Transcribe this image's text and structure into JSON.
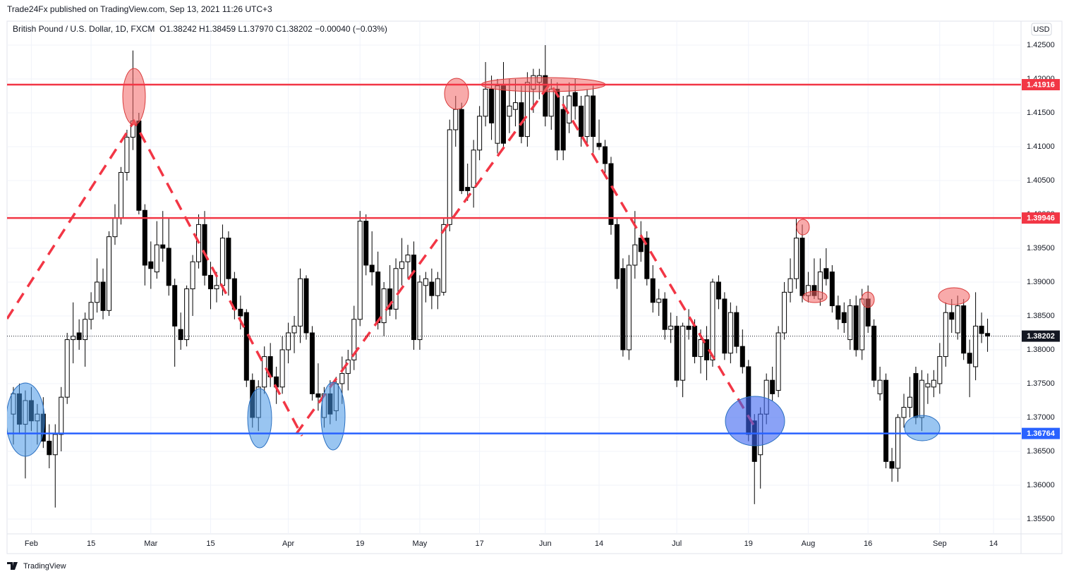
{
  "header": {
    "publisher": "Trade24Fx published on TradingView.com, Sep 13, 2021 11:26 UTC+3",
    "logo": "TradingView"
  },
  "chart_data": {
    "type": "candlestick",
    "title": "British Pound / U.S. Dollar, 1D, FXCM",
    "ohlc_legend": "O1.38242 H1.38459 L1.37970 C1.38202 −0.00040 (−0.03%)",
    "currency": "USD",
    "up_color": "#ffffff",
    "down_color": "#000000",
    "grid": true,
    "ylim": [
      1.35281,
      1.42854
    ],
    "xlim": [
      -1.06,
      168.6
    ],
    "yticks": [
      {
        "value": 1.355,
        "label": "1.35500"
      },
      {
        "value": 1.36,
        "label": "1.36000"
      },
      {
        "value": 1.365,
        "label": "1.36500"
      },
      {
        "value": 1.37,
        "label": "1.37000"
      },
      {
        "value": 1.375,
        "label": "1.37500"
      },
      {
        "value": 1.38,
        "label": "1.38000"
      },
      {
        "value": 1.385,
        "label": "1.38500"
      },
      {
        "value": 1.39,
        "label": "1.39000"
      },
      {
        "value": 1.395,
        "label": "1.39500"
      },
      {
        "value": 1.4,
        "label": "1.40000"
      },
      {
        "value": 1.405,
        "label": "1.40500"
      },
      {
        "value": 1.41,
        "label": "1.41000"
      },
      {
        "value": 1.415,
        "label": "1.41500"
      },
      {
        "value": 1.42,
        "label": "1.42000"
      },
      {
        "value": 1.425,
        "label": "1.42500"
      }
    ],
    "xticks": [
      {
        "value": 3,
        "label": "Feb"
      },
      {
        "value": 13,
        "label": "15"
      },
      {
        "value": 23,
        "label": "Mar"
      },
      {
        "value": 33,
        "label": "15"
      },
      {
        "value": 46,
        "label": "Apr"
      },
      {
        "value": 58,
        "label": "19"
      },
      {
        "value": 68,
        "label": "May"
      },
      {
        "value": 78,
        "label": "17"
      },
      {
        "value": 89,
        "label": "Jun"
      },
      {
        "value": 98,
        "label": "14"
      },
      {
        "value": 111,
        "label": "Jul"
      },
      {
        "value": 123,
        "label": "19"
      },
      {
        "value": 133,
        "label": "Aug"
      },
      {
        "value": 143,
        "label": "16"
      },
      {
        "value": 155,
        "label": "Sep"
      },
      {
        "value": 164,
        "label": "14"
      }
    ],
    "price_lines": [
      {
        "value": 1.41916,
        "label": "1.41916",
        "color": "#f23645",
        "style": "solid"
      },
      {
        "value": 1.39946,
        "label": "1.39946",
        "color": "#f23645",
        "style": "solid"
      },
      {
        "value": 1.36764,
        "label": "1.36764",
        "color": "#2962ff",
        "style": "solid"
      },
      {
        "value": 1.38202,
        "label": "1.38202",
        "color": "#131722",
        "style": "dotted"
      }
    ],
    "candles": [
      [
        1.3705,
        1.3745,
        1.366,
        1.3735
      ],
      [
        1.3735,
        1.375,
        1.3675,
        1.369
      ],
      [
        1.369,
        1.374,
        1.361,
        1.3725
      ],
      [
        1.3725,
        1.3745,
        1.368,
        1.3695
      ],
      [
        1.3695,
        1.372,
        1.366,
        1.3705
      ],
      [
        1.3705,
        1.373,
        1.3655,
        1.3665
      ],
      [
        1.3665,
        1.369,
        1.3625,
        1.3645
      ],
      [
        1.3645,
        1.369,
        1.3567,
        1.3675
      ],
      [
        1.3675,
        1.3745,
        1.365,
        1.373
      ],
      [
        1.373,
        1.3825,
        1.372,
        1.3815
      ],
      [
        1.3815,
        1.387,
        1.378,
        1.382
      ],
      [
        1.3825,
        1.3845,
        1.38,
        1.3815
      ],
      [
        1.3815,
        1.3855,
        1.3775,
        1.3845
      ],
      [
        1.3845,
        1.3885,
        1.383,
        1.387
      ],
      [
        1.387,
        1.3935,
        1.3855,
        1.39
      ],
      [
        1.39,
        1.392,
        1.3845,
        1.3858
      ],
      [
        1.3858,
        1.3975,
        1.385,
        1.3967
      ],
      [
        1.3967,
        1.4015,
        1.3955,
        1.3995
      ],
      [
        1.3995,
        1.407,
        1.3985,
        1.4062
      ],
      [
        1.4062,
        1.4125,
        1.405,
        1.4114
      ],
      [
        1.4114,
        1.4242,
        1.4095,
        1.4138
      ],
      [
        1.4138,
        1.415,
        1.4,
        1.4006
      ],
      [
        1.4006,
        1.4015,
        1.3895,
        1.3925
      ],
      [
        1.393,
        1.396,
        1.389,
        1.392
      ],
      [
        1.3915,
        1.399,
        1.3905,
        1.3955
      ],
      [
        1.3955,
        1.4005,
        1.393,
        1.395
      ],
      [
        1.395,
        1.3995,
        1.388,
        1.3895
      ],
      [
        1.3895,
        1.3905,
        1.3775,
        1.3835
      ],
      [
        1.383,
        1.3855,
        1.38,
        1.3815
      ],
      [
        1.3815,
        1.3895,
        1.3805,
        1.389
      ],
      [
        1.389,
        1.394,
        1.385,
        1.393
      ],
      [
        1.393,
        1.4,
        1.392,
        1.3985
      ],
      [
        1.3985,
        1.4005,
        1.3895,
        1.391
      ],
      [
        1.391,
        1.393,
        1.386,
        1.389
      ],
      [
        1.389,
        1.3915,
        1.387,
        1.3895
      ],
      [
        1.3895,
        1.3985,
        1.388,
        1.3965
      ],
      [
        1.3965,
        1.3975,
        1.388,
        1.3905
      ],
      [
        1.3905,
        1.3915,
        1.3845,
        1.386
      ],
      [
        1.386,
        1.388,
        1.383,
        1.385
      ],
      [
        1.3855,
        1.386,
        1.3745,
        1.3755
      ],
      [
        1.3755,
        1.3765,
        1.3685,
        1.37
      ],
      [
        1.37,
        1.3755,
        1.368,
        1.3745
      ],
      [
        1.3745,
        1.3805,
        1.3735,
        1.379
      ],
      [
        1.379,
        1.381,
        1.3745,
        1.376
      ],
      [
        1.376,
        1.3775,
        1.372,
        1.3745
      ],
      [
        1.3745,
        1.382,
        1.3735,
        1.38
      ],
      [
        1.38,
        1.384,
        1.378,
        1.3825
      ],
      [
        1.3825,
        1.385,
        1.3795,
        1.3835
      ],
      [
        1.3835,
        1.392,
        1.381,
        1.3905
      ],
      [
        1.3905,
        1.391,
        1.3815,
        1.3825
      ],
      [
        1.3825,
        1.3835,
        1.3725,
        1.3735
      ],
      [
        1.3735,
        1.378,
        1.371,
        1.373
      ],
      [
        1.37,
        1.3745,
        1.3685,
        1.3735
      ],
      [
        1.3735,
        1.3755,
        1.369,
        1.3705
      ],
      [
        1.371,
        1.376,
        1.3695,
        1.375
      ],
      [
        1.375,
        1.379,
        1.372,
        1.3765
      ],
      [
        1.3765,
        1.38,
        1.374,
        1.3785
      ],
      [
        1.3785,
        1.3865,
        1.377,
        1.3845
      ],
      [
        1.3845,
        1.4005,
        1.3835,
        1.399
      ],
      [
        1.399,
        1.4,
        1.391,
        1.3925
      ],
      [
        1.3925,
        1.3975,
        1.3895,
        1.3915
      ],
      [
        1.3915,
        1.3945,
        1.383,
        1.384
      ],
      [
        1.384,
        1.39,
        1.382,
        1.389
      ],
      [
        1.389,
        1.3925,
        1.385,
        1.386
      ],
      [
        1.386,
        1.3935,
        1.3845,
        1.392
      ],
      [
        1.392,
        1.3965,
        1.3895,
        1.393
      ],
      [
        1.393,
        1.3955,
        1.3905,
        1.394
      ],
      [
        1.394,
        1.396,
        1.38,
        1.3815
      ],
      [
        1.3815,
        1.391,
        1.38,
        1.39
      ],
      [
        1.3895,
        1.3915,
        1.387,
        1.3905
      ],
      [
        1.39,
        1.392,
        1.386,
        1.388
      ],
      [
        1.388,
        1.3915,
        1.386,
        1.3905
      ],
      [
        1.3885,
        1.3995,
        1.388,
        1.3985
      ],
      [
        1.3985,
        1.414,
        1.3975,
        1.4125
      ],
      [
        1.4125,
        1.4175,
        1.41,
        1.4155
      ],
      [
        1.4155,
        1.4165,
        1.403,
        1.4035
      ],
      [
        1.404,
        1.4075,
        1.402,
        1.4035
      ],
      [
        1.404,
        1.411,
        1.401,
        1.4095
      ],
      [
        1.4095,
        1.416,
        1.408,
        1.4145
      ],
      [
        1.4145,
        1.4225,
        1.413,
        1.4185
      ],
      [
        1.4185,
        1.4205,
        1.411,
        1.4135
      ],
      [
        1.4105,
        1.42,
        1.409,
        1.419
      ],
      [
        1.419,
        1.4225,
        1.41,
        1.4105
      ],
      [
        1.4145,
        1.42,
        1.412,
        1.416
      ],
      [
        1.4155,
        1.42,
        1.413,
        1.4165
      ],
      [
        1.4165,
        1.419,
        1.4105,
        1.4115
      ],
      [
        1.4115,
        1.421,
        1.41,
        1.4195
      ],
      [
        1.4185,
        1.4215,
        1.415,
        1.4205
      ],
      [
        1.4195,
        1.4215,
        1.417,
        1.4205
      ],
      [
        1.4205,
        1.425,
        1.413,
        1.4145
      ],
      [
        1.4145,
        1.42,
        1.4125,
        1.4185
      ],
      [
        1.4185,
        1.4195,
        1.408,
        1.4095
      ],
      [
        1.4155,
        1.4175,
        1.408,
        1.4095
      ],
      [
        1.4135,
        1.4195,
        1.412,
        1.4175
      ],
      [
        1.418,
        1.42,
        1.414,
        1.416
      ],
      [
        1.416,
        1.4175,
        1.41,
        1.4115
      ],
      [
        1.4115,
        1.4185,
        1.41,
        1.4175
      ],
      [
        1.4175,
        1.419,
        1.409,
        1.4115
      ],
      [
        1.4105,
        1.414,
        1.4095,
        1.41
      ],
      [
        1.41,
        1.411,
        1.406,
        1.4075
      ],
      [
        1.4075,
        1.4085,
        1.397,
        1.3985
      ],
      [
        1.3985,
        1.3995,
        1.389,
        1.3905
      ],
      [
        1.392,
        1.3935,
        1.379,
        1.38
      ],
      [
        1.38,
        1.394,
        1.3785,
        1.3925
      ],
      [
        1.3925,
        1.4005,
        1.3905,
        1.3955
      ],
      [
        1.3965,
        1.399,
        1.393,
        1.3945
      ],
      [
        1.3965,
        1.3975,
        1.3895,
        1.3905
      ],
      [
        1.3905,
        1.3925,
        1.3855,
        1.387
      ],
      [
        1.387,
        1.389,
        1.385,
        1.3875
      ],
      [
        1.3875,
        1.3885,
        1.3815,
        1.383
      ],
      [
        1.383,
        1.3855,
        1.381,
        1.3835
      ],
      [
        1.3835,
        1.385,
        1.3745,
        1.3755
      ],
      [
        1.3755,
        1.384,
        1.373,
        1.3835
      ],
      [
        1.3835,
        1.386,
        1.3815,
        1.383
      ],
      [
        1.3835,
        1.3845,
        1.378,
        1.379
      ],
      [
        1.379,
        1.383,
        1.3765,
        1.3815
      ],
      [
        1.3815,
        1.3835,
        1.3755,
        1.3785
      ],
      [
        1.3785,
        1.3905,
        1.3775,
        1.39
      ],
      [
        1.39,
        1.391,
        1.386,
        1.3875
      ],
      [
        1.3875,
        1.3885,
        1.3785,
        1.3795
      ],
      [
        1.3795,
        1.387,
        1.378,
        1.3855
      ],
      [
        1.3855,
        1.3865,
        1.3795,
        1.3805
      ],
      [
        1.3805,
        1.383,
        1.3765,
        1.3775
      ],
      [
        1.3775,
        1.3785,
        1.3665,
        1.3675
      ],
      [
        1.3695,
        1.3705,
        1.3572,
        1.3635
      ],
      [
        1.3645,
        1.3715,
        1.3595,
        1.3705
      ],
      [
        1.3705,
        1.3765,
        1.369,
        1.3755
      ],
      [
        1.3755,
        1.3775,
        1.3725,
        1.3735
      ],
      [
        1.374,
        1.3835,
        1.373,
        1.3825
      ],
      [
        1.3825,
        1.39,
        1.3815,
        1.3885
      ],
      [
        1.3885,
        1.3935,
        1.387,
        1.3905
      ],
      [
        1.3905,
        1.3995,
        1.389,
        1.3965
      ],
      [
        1.3965,
        1.3985,
        1.387,
        1.388
      ],
      [
        1.388,
        1.3915,
        1.387,
        1.3895
      ],
      [
        1.3895,
        1.3935,
        1.3875,
        1.388
      ],
      [
        1.3875,
        1.3935,
        1.3865,
        1.3915
      ],
      [
        1.392,
        1.395,
        1.3895,
        1.3905
      ],
      [
        1.3915,
        1.3925,
        1.3855,
        1.3865
      ],
      [
        1.3865,
        1.388,
        1.383,
        1.3845
      ],
      [
        1.3855,
        1.387,
        1.3825,
        1.384
      ],
      [
        1.3815,
        1.3875,
        1.38,
        1.3865
      ],
      [
        1.3865,
        1.388,
        1.379,
        1.38
      ],
      [
        1.38,
        1.389,
        1.3785,
        1.3875
      ],
      [
        1.3875,
        1.3895,
        1.3825,
        1.3835
      ],
      [
        1.3835,
        1.3845,
        1.3745,
        1.3755
      ],
      [
        1.3735,
        1.3775,
        1.3725,
        1.3755
      ],
      [
        1.3755,
        1.3765,
        1.3625,
        1.3635
      ],
      [
        1.3635,
        1.3655,
        1.3605,
        1.3625
      ],
      [
        1.3625,
        1.3705,
        1.3605,
        1.37
      ],
      [
        1.37,
        1.3735,
        1.3685,
        1.3715
      ],
      [
        1.3715,
        1.376,
        1.37,
        1.373
      ],
      [
        1.3765,
        1.3775,
        1.369,
        1.37
      ],
      [
        1.37,
        1.377,
        1.368,
        1.3755
      ],
      [
        1.3745,
        1.3765,
        1.372,
        1.375
      ],
      [
        1.3745,
        1.377,
        1.373,
        1.3755
      ],
      [
        1.375,
        1.381,
        1.3735,
        1.379
      ],
      [
        1.379,
        1.387,
        1.3775,
        1.3855
      ],
      [
        1.3855,
        1.3875,
        1.3825,
        1.3845
      ],
      [
        1.3825,
        1.388,
        1.3815,
        1.3865
      ],
      [
        1.3865,
        1.3875,
        1.3785,
        1.3795
      ],
      [
        1.3795,
        1.3815,
        1.373,
        1.378
      ],
      [
        1.3775,
        1.3885,
        1.3755,
        1.3835
      ],
      [
        1.3835,
        1.3855,
        1.381,
        1.3824
      ],
      [
        1.38242,
        1.38459,
        1.3797,
        1.38202
      ]
    ]
  }
}
